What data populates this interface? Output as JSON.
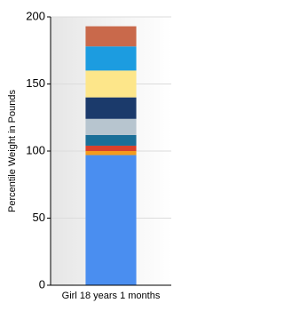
{
  "chart_data": {
    "type": "stacked_bar",
    "y_label": "Percentile Weight in Pounds",
    "categories": [
      "Girl 18 years 1 months"
    ],
    "series": [
      {
        "color": "#4a8ef0",
        "values": [
          97
        ]
      },
      {
        "color": "#f39c1e",
        "values": [
          3
        ]
      },
      {
        "color": "#d9412c",
        "values": [
          4
        ]
      },
      {
        "color": "#1b6f98",
        "values": [
          8
        ]
      },
      {
        "color": "#b7c5cf",
        "values": [
          12
        ]
      },
      {
        "color": "#1b3a6b",
        "values": [
          16
        ]
      },
      {
        "color": "#fde68a",
        "values": [
          20
        ]
      },
      {
        "color": "#1c9ce0",
        "values": [
          18
        ]
      },
      {
        "color": "#c9694b",
        "values": [
          15
        ]
      }
    ],
    "ylim": [
      0,
      200
    ],
    "yticks": [
      0,
      50,
      100,
      150,
      200
    ],
    "grid": true
  }
}
